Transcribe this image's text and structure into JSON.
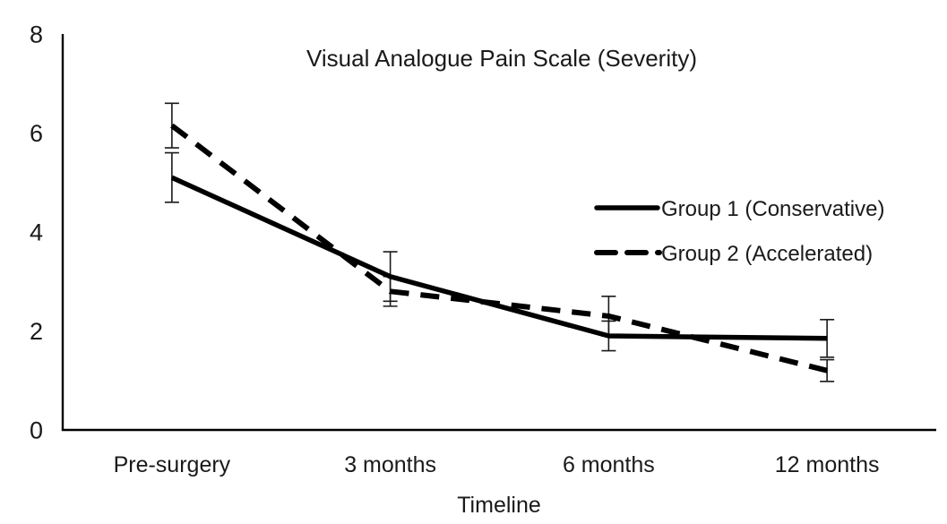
{
  "figure": {
    "background": "#ffffff",
    "text_color": "#1a1a1a",
    "line_color": "#000000"
  },
  "chart_data": {
    "type": "line",
    "title": "Visual Analogue Pain Scale (Severity)",
    "xlabel": "Timeline",
    "ylabel": "",
    "categories": [
      "Pre-surgery",
      "3 months",
      "6 months",
      "12 months"
    ],
    "y_ticks": [
      0,
      2,
      4,
      6,
      8
    ],
    "ylim": [
      0,
      8
    ],
    "grid": false,
    "legend_position": "inside-right",
    "series": [
      {
        "name": "Group 1 (Conservative)",
        "line_style": "solid",
        "values": [
          5.1,
          3.1,
          1.9,
          1.85
        ],
        "error_bars": [
          0.5,
          0.5,
          0.3,
          0.38
        ]
      },
      {
        "name": "Group 2 (Accelerated)",
        "line_style": "dashed",
        "values": [
          6.15,
          2.8,
          2.3,
          1.2
        ],
        "error_bars": [
          0.45,
          0.3,
          0.4,
          0.22
        ]
      }
    ]
  }
}
